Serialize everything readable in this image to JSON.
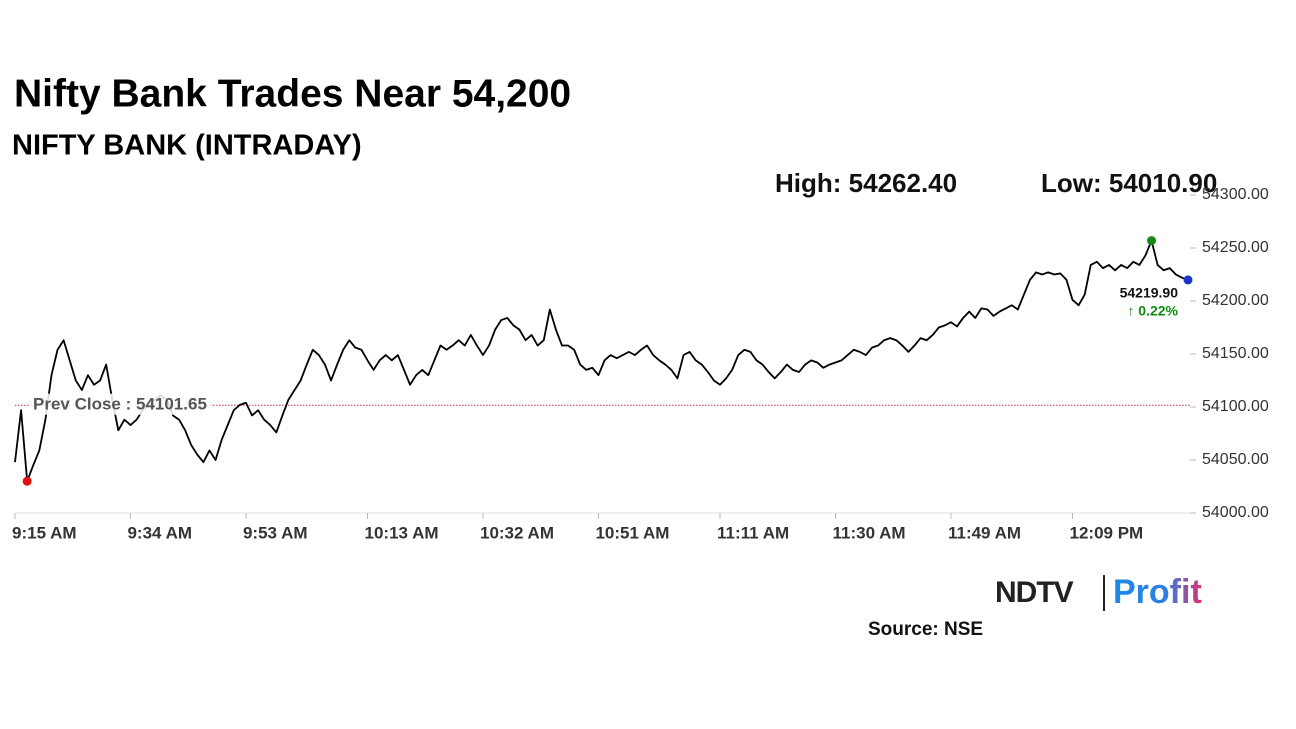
{
  "chart_data": {
    "type": "line",
    "title": "Nifty Bank Trades Near 54,200",
    "subtitle": "NIFTY BANK (INTRADAY)",
    "high_label": "High: 54262.40",
    "low_label": "Low: 54010.90",
    "prev_close": {
      "value": 54101.65,
      "label": "Prev Close : 54101.65"
    },
    "last_label": "54219.90",
    "change_label": "↑ 0.22%",
    "source": "Source: NSE",
    "logo": {
      "left": "NDTV",
      "right": "Profit"
    },
    "color": "#000000",
    "high_color": "#138a13",
    "low_color": "#e01010",
    "last_color": "#1a35c8",
    "prev_close_color": "#c0304a",
    "categories": [
      "9:15 AM",
      null,
      null,
      null,
      null,
      null,
      null,
      null,
      null,
      null,
      null,
      null,
      null,
      null,
      null,
      null,
      null,
      null,
      null,
      "9:34 AM",
      null,
      null,
      null,
      null,
      null,
      null,
      null,
      null,
      null,
      null,
      null,
      null,
      null,
      null,
      null,
      null,
      null,
      null,
      "9:53 AM",
      null,
      null,
      null,
      null,
      null,
      null,
      null,
      null,
      null,
      null,
      null,
      null,
      null,
      null,
      null,
      null,
      null,
      null,
      null,
      "10:13 AM",
      null,
      null,
      null,
      null,
      null,
      null,
      null,
      null,
      null,
      null,
      null,
      null,
      null,
      null,
      null,
      null,
      null,
      null,
      "10:32 AM",
      null,
      null,
      null,
      null,
      null,
      null,
      null,
      null,
      null,
      null,
      null,
      null,
      null,
      null,
      null,
      null,
      null,
      null,
      "10:51 AM",
      null,
      null,
      null,
      null,
      null,
      null,
      null,
      null,
      null,
      null,
      null,
      null,
      null,
      null,
      null,
      null,
      null,
      null,
      null,
      "11:11 AM",
      null,
      null,
      null,
      null,
      null,
      null,
      null,
      null,
      null,
      null,
      null,
      null,
      null,
      null,
      null,
      null,
      null,
      null,
      "11:30 AM",
      null,
      null,
      null,
      null,
      null,
      null,
      null,
      null,
      null,
      null,
      null,
      null,
      null,
      null,
      null,
      null,
      null,
      null,
      "11:49 AM",
      null,
      null,
      null,
      null,
      null,
      null,
      null,
      null,
      null,
      null,
      null,
      null,
      null,
      null,
      null,
      null,
      null,
      null,
      null,
      "12:09 PM",
      null,
      null,
      null,
      null,
      null,
      null,
      null,
      null,
      null,
      null,
      null,
      null,
      null,
      null,
      null,
      null,
      null,
      null,
      null
    ],
    "values": [
      54048,
      54097,
      54030,
      54045,
      54059,
      54088,
      54130,
      54154,
      54163,
      54144,
      54125,
      54116,
      54130,
      54121,
      54125,
      54140,
      54107,
      54078,
      54088,
      54083,
      54088,
      54097,
      54102,
      54107,
      54111,
      54107,
      54092,
      54088,
      54078,
      54064,
      54055,
      54048,
      54059,
      54050,
      54069,
      54083,
      54097,
      54102,
      54104,
      54092,
      54097,
      54088,
      54083,
      54076,
      54092,
      54107,
      54116,
      54125,
      54140,
      54154,
      54149,
      54140,
      54125,
      54140,
      54154,
      54163,
      54156,
      54154,
      54144,
      54135,
      54144,
      54149,
      54144,
      54149,
      54135,
      54121,
      54130,
      54135,
      54130,
      54144,
      54158,
      54154,
      54158,
      54163,
      54158,
      54168,
      54158,
      54149,
      54158,
      54173,
      54182,
      54184,
      54177,
      54173,
      54163,
      54168,
      54158,
      54163,
      54192,
      54173,
      54158,
      54158,
      54154,
      54140,
      54135,
      54137,
      54130,
      54144,
      54149,
      54146,
      54149,
      54152,
      54149,
      54154,
      54158,
      54149,
      54144,
      54140,
      54135,
      54127,
      54149,
      54152,
      54144,
      54140,
      54133,
      54125,
      54121,
      54127,
      54135,
      54149,
      54154,
      54152,
      54144,
      54140,
      54133,
      54127,
      54133,
      54140,
      54135,
      54133,
      54140,
      54144,
      54142,
      54137,
      54140,
      54142,
      54144,
      54149,
      54154,
      54152,
      54149,
      54156,
      54158,
      54163,
      54165,
      54163,
      54158,
      54152,
      54158,
      54165,
      54163,
      54168,
      54175,
      54177,
      54180,
      54176,
      54184,
      54190,
      54184,
      54193,
      54192,
      54186,
      54190,
      54193,
      54196,
      54192,
      54206,
      54220,
      54227,
      54225,
      54227,
      54225,
      54226,
      54220,
      54201,
      54196,
      54206,
      54234,
      54237,
      54231,
      54234,
      54229,
      54234,
      54231,
      54237,
      54234,
      54243,
      54257,
      54234,
      54229,
      54231,
      54225,
      54222,
      54219.9
    ],
    "ylim": [
      54000,
      54300
    ],
    "yticks": [
      {
        "value": 54000,
        "label": "54000.00"
      },
      {
        "value": 54050,
        "label": "54050.00"
      },
      {
        "value": 54100,
        "label": "54100.00"
      },
      {
        "value": 54150,
        "label": "54150.00"
      },
      {
        "value": 54200,
        "label": "54200.00"
      },
      {
        "value": 54250,
        "label": "54250.00"
      },
      {
        "value": 54300,
        "label": "54300.00"
      }
    ],
    "grid": false
  }
}
